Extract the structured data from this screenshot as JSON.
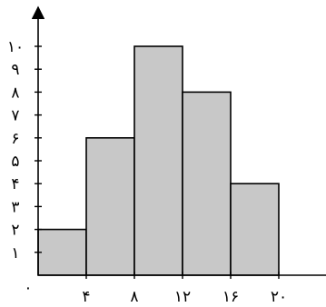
{
  "chart_data": {
    "type": "bar",
    "title": "",
    "xlabel": "",
    "ylabel": "",
    "bins": [
      {
        "x0": 0,
        "x1": 4,
        "value": 2
      },
      {
        "x0": 4,
        "x1": 8,
        "value": 6
      },
      {
        "x0": 8,
        "x1": 12,
        "value": 10
      },
      {
        "x0": 12,
        "x1": 16,
        "value": 8
      },
      {
        "x0": 16,
        "x1": 20,
        "value": 4
      }
    ],
    "xlim": [
      0,
      24
    ],
    "ylim": [
      0,
      11.5
    ],
    "origin_label": "٠",
    "x_ticks": [
      {
        "value": 4,
        "label": "۴"
      },
      {
        "value": 8,
        "label": "۸"
      },
      {
        "value": 12,
        "label": "۱۲"
      },
      {
        "value": 16,
        "label": "۱۶"
      },
      {
        "value": 20,
        "label": "۲٠"
      }
    ],
    "y_ticks": [
      {
        "value": 1,
        "label": "۱"
      },
      {
        "value": 2,
        "label": "۲"
      },
      {
        "value": 3,
        "label": "۳"
      },
      {
        "value": 4,
        "label": "۴"
      },
      {
        "value": 5,
        "label": "۵"
      },
      {
        "value": 6,
        "label": "۶"
      },
      {
        "value": 7,
        "label": "۷"
      },
      {
        "value": 8,
        "label": "۸"
      },
      {
        "value": 9,
        "label": "۹"
      },
      {
        "value": 10,
        "label": "۱٠"
      }
    ],
    "grid": false,
    "bar_color": "#c8c8c8",
    "edge_color": "#000000"
  }
}
